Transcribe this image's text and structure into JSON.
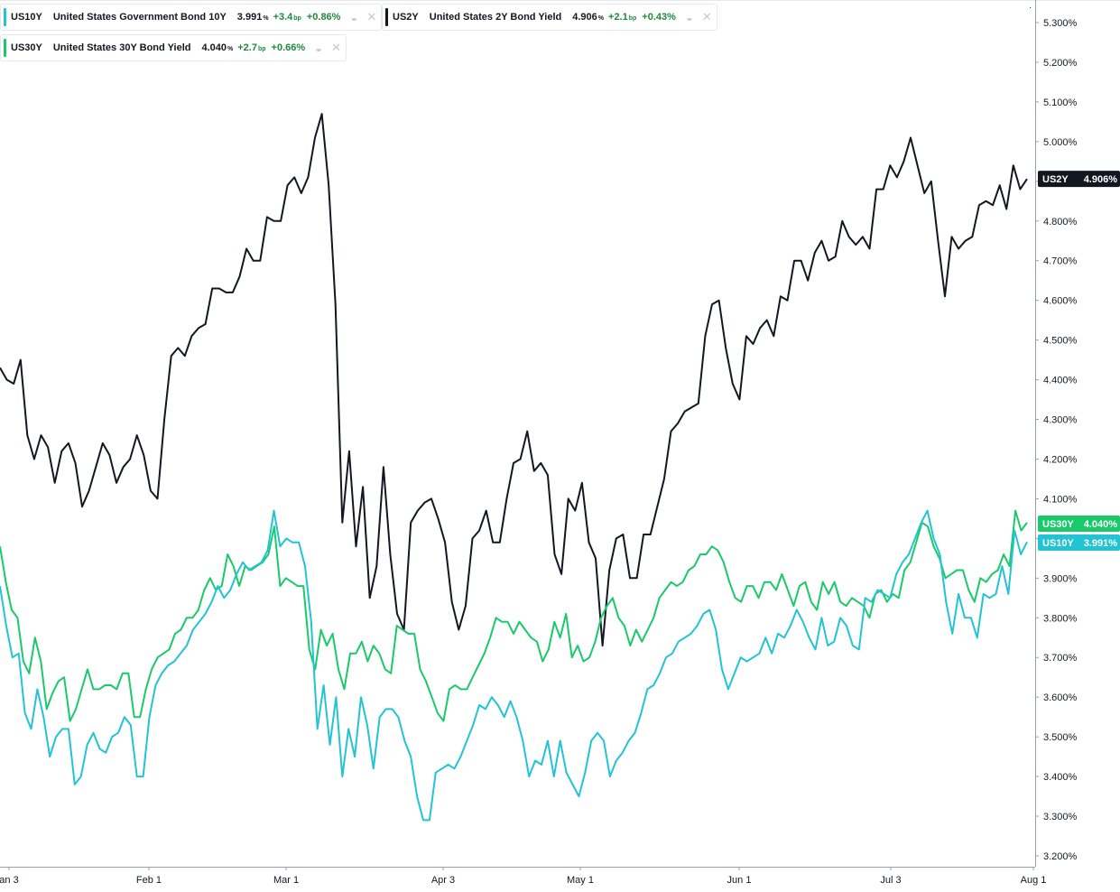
{
  "legend": [
    {
      "symbol": "US10Y",
      "name": "United States Government Bond 10Y",
      "value": "3.991",
      "value_unit": "%",
      "change": "+3.4",
      "change_unit": "bp",
      "pct": "+0.86%",
      "color": "#22c4d4"
    },
    {
      "symbol": "US2Y",
      "name": "United States 2Y Bond Yield",
      "value": "4.906",
      "value_unit": "%",
      "change": "+2.1",
      "change_unit": "bp",
      "pct": "+0.43%",
      "color": "#131722"
    },
    {
      "symbol": "US30Y",
      "name": "United States 30Y Bond Yield",
      "value": "4.040",
      "value_unit": "%",
      "change": "+2.7",
      "change_unit": "bp",
      "pct": "+0.66%",
      "color": "#1ac96a"
    }
  ],
  "price_tags": [
    {
      "label": "US2Y",
      "value": "4.906%",
      "color": "#131722",
      "y": 4.906
    },
    {
      "label": "US30Y",
      "value": "4.040%",
      "color": "#1ac96a",
      "y": 4.04
    },
    {
      "label": "US10Y",
      "value": "3.991%",
      "color": "#22c4d4",
      "y": 3.991
    }
  ],
  "chart_data": {
    "type": "line",
    "title": "",
    "xlabel": "",
    "ylabel": "",
    "x_ticks": [
      "an 3",
      "Feb 1",
      "Mar 1",
      "Apr 3",
      "May 1",
      "Jun 1",
      "Jul 3",
      "Aug 1"
    ],
    "y_ticks": [
      "3.200%",
      "3.300%",
      "3.400%",
      "3.500%",
      "3.600%",
      "3.700%",
      "3.800%",
      "3.900%",
      "4.000%",
      "4.100%",
      "4.200%",
      "4.300%",
      "4.400%",
      "4.500%",
      "4.600%",
      "4.700%",
      "4.800%",
      "4.900%",
      "5.000%",
      "5.100%",
      "5.200%",
      "5.300%"
    ],
    "ylim": [
      3.18,
      5.34
    ],
    "grid": false,
    "series": [
      {
        "name": "US2Y",
        "color": "#131722",
        "values": [
          4.43,
          4.4,
          4.39,
          4.45,
          4.26,
          4.2,
          4.26,
          4.23,
          4.14,
          4.22,
          4.24,
          4.19,
          4.08,
          4.12,
          4.18,
          4.24,
          4.21,
          4.14,
          4.18,
          4.2,
          4.26,
          4.21,
          4.12,
          4.1,
          4.3,
          4.46,
          4.48,
          4.46,
          4.51,
          4.53,
          4.54,
          4.63,
          4.63,
          4.62,
          4.62,
          4.66,
          4.73,
          4.7,
          4.7,
          4.81,
          4.8,
          4.8,
          4.89,
          4.91,
          4.87,
          4.91,
          5.01,
          5.07,
          4.89,
          4.59,
          4.04,
          4.22,
          3.98,
          4.13,
          3.85,
          3.93,
          4.18,
          3.96,
          3.81,
          3.77,
          4.04,
          4.07,
          4.09,
          4.1,
          4.05,
          3.99,
          3.84,
          3.77,
          3.83,
          4.0,
          4.02,
          4.07,
          3.99,
          3.99,
          4.1,
          4.19,
          4.2,
          4.27,
          4.17,
          4.19,
          4.16,
          3.96,
          3.91,
          4.1,
          4.07,
          4.14,
          3.99,
          3.95,
          3.73,
          3.92,
          4.0,
          4.01,
          3.9,
          3.9,
          4.01,
          4.01,
          4.08,
          4.15,
          4.27,
          4.29,
          4.32,
          4.33,
          4.34,
          4.51,
          4.59,
          4.6,
          4.48,
          4.39,
          4.35,
          4.51,
          4.49,
          4.53,
          4.55,
          4.51,
          4.61,
          4.6,
          4.7,
          4.7,
          4.65,
          4.72,
          4.75,
          4.7,
          4.71,
          4.8,
          4.76,
          4.74,
          4.76,
          4.73,
          4.88,
          4.88,
          4.94,
          4.91,
          4.95,
          5.01,
          4.94,
          4.87,
          4.9,
          4.75,
          4.61,
          4.76,
          4.73,
          4.75,
          4.76,
          4.84,
          4.85,
          4.84,
          4.89,
          4.83,
          4.94,
          4.88,
          4.906
        ]
      },
      {
        "name": "US30Y",
        "color": "#1ac96a",
        "values": [
          3.98,
          3.89,
          3.82,
          3.8,
          3.69,
          3.66,
          3.75,
          3.69,
          3.57,
          3.61,
          3.64,
          3.65,
          3.54,
          3.57,
          3.62,
          3.67,
          3.62,
          3.62,
          3.63,
          3.63,
          3.62,
          3.66,
          3.66,
          3.55,
          3.55,
          3.62,
          3.67,
          3.7,
          3.71,
          3.72,
          3.76,
          3.77,
          3.8,
          3.8,
          3.82,
          3.87,
          3.9,
          3.87,
          3.88,
          3.96,
          3.93,
          3.88,
          3.93,
          3.92,
          3.93,
          3.94,
          3.96,
          4.03,
          3.88,
          3.9,
          3.89,
          3.88,
          3.88,
          3.72,
          3.67,
          3.77,
          3.73,
          3.76,
          3.67,
          3.62,
          3.71,
          3.71,
          3.74,
          3.69,
          3.73,
          3.71,
          3.67,
          3.66,
          3.78,
          3.77,
          3.76,
          3.76,
          3.67,
          3.64,
          3.6,
          3.56,
          3.54,
          3.62,
          3.63,
          3.62,
          3.62,
          3.65,
          3.68,
          3.71,
          3.75,
          3.8,
          3.79,
          3.79,
          3.76,
          3.79,
          3.77,
          3.75,
          3.74,
          3.69,
          3.72,
          3.79,
          3.75,
          3.81,
          3.7,
          3.73,
          3.69,
          3.7,
          3.74,
          3.8,
          3.83,
          3.85,
          3.8,
          3.78,
          3.73,
          3.77,
          3.74,
          3.77,
          3.8,
          3.85,
          3.87,
          3.89,
          3.88,
          3.89,
          3.92,
          3.93,
          3.96,
          3.96,
          3.98,
          3.97,
          3.94,
          3.89,
          3.85,
          3.84,
          3.88,
          3.88,
          3.85,
          3.89,
          3.89,
          3.87,
          3.91,
          3.87,
          3.83,
          3.88,
          3.89,
          3.84,
          3.82,
          3.89,
          3.86,
          3.89,
          3.84,
          3.83,
          3.85,
          3.84,
          3.83,
          3.8,
          3.86,
          3.87,
          3.84,
          3.86,
          3.85,
          3.92,
          3.94,
          3.99,
          4.04,
          4.03,
          3.98,
          3.95,
          3.9,
          3.91,
          3.92,
          3.92,
          3.87,
          3.84,
          3.9,
          3.89,
          3.91,
          3.92,
          3.96,
          3.93,
          4.07,
          4.02,
          4.04
        ]
      },
      {
        "name": "US10Y",
        "color": "#22c4d4",
        "values": [
          3.88,
          3.78,
          3.7,
          3.71,
          3.56,
          3.52,
          3.62,
          3.55,
          3.45,
          3.5,
          3.52,
          3.52,
          3.38,
          3.4,
          3.48,
          3.51,
          3.47,
          3.46,
          3.5,
          3.51,
          3.55,
          3.53,
          3.4,
          3.4,
          3.55,
          3.63,
          3.66,
          3.68,
          3.69,
          3.71,
          3.73,
          3.77,
          3.79,
          3.81,
          3.84,
          3.88,
          3.85,
          3.87,
          3.91,
          3.94,
          3.92,
          3.93,
          3.94,
          3.97,
          4.07,
          3.98,
          4.0,
          3.99,
          3.99,
          3.93,
          3.79,
          3.52,
          3.63,
          3.48,
          3.6,
          3.4,
          3.52,
          3.45,
          3.6,
          3.53,
          3.42,
          3.55,
          3.57,
          3.57,
          3.55,
          3.49,
          3.45,
          3.35,
          3.29,
          3.29,
          3.41,
          3.42,
          3.43,
          3.42,
          3.45,
          3.49,
          3.53,
          3.58,
          3.57,
          3.6,
          3.58,
          3.55,
          3.59,
          3.55,
          3.49,
          3.4,
          3.44,
          3.43,
          3.49,
          3.4,
          3.49,
          3.41,
          3.38,
          3.35,
          3.41,
          3.49,
          3.51,
          3.49,
          3.4,
          3.44,
          3.46,
          3.49,
          3.51,
          3.56,
          3.62,
          3.63,
          3.66,
          3.7,
          3.71,
          3.74,
          3.75,
          3.76,
          3.78,
          3.81,
          3.82,
          3.77,
          3.67,
          3.62,
          3.66,
          3.7,
          3.69,
          3.7,
          3.71,
          3.75,
          3.71,
          3.76,
          3.75,
          3.78,
          3.82,
          3.79,
          3.75,
          3.72,
          3.8,
          3.73,
          3.74,
          3.8,
          3.78,
          3.73,
          3.72,
          3.85,
          3.84,
          3.87,
          3.86,
          3.85,
          3.91,
          3.94,
          3.96,
          4.0,
          4.04,
          4.07,
          4.0,
          3.96,
          3.84,
          3.76,
          3.86,
          3.8,
          3.8,
          3.75,
          3.86,
          3.85,
          3.86,
          3.93,
          3.86,
          4.02,
          3.96,
          3.991
        ]
      }
    ]
  }
}
